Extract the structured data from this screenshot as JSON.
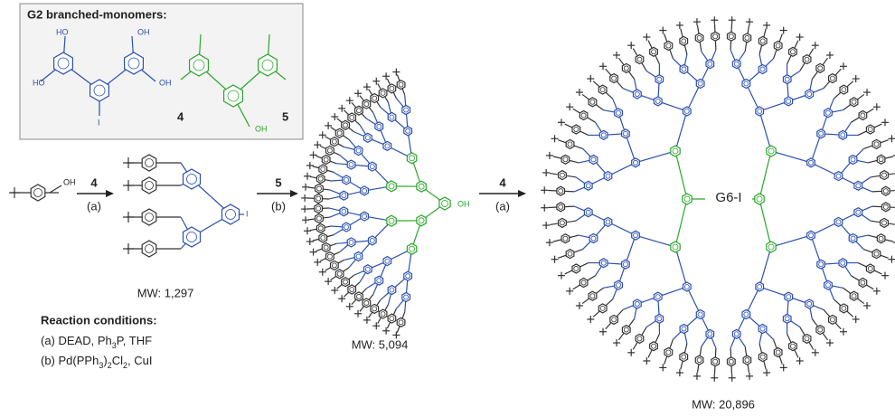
{
  "monomer_box": {
    "title": "G2 branched-monomers:",
    "compound_4": {
      "labels": [
        "HO",
        "OH",
        "HO",
        "OH",
        "I"
      ],
      "number": "4"
    },
    "compound_5": {
      "labels": [
        "OH"
      ],
      "number": "5"
    }
  },
  "starting_material": {
    "labels": [
      "OH"
    ]
  },
  "steps": [
    {
      "reagent": "4",
      "condition": "(a)"
    },
    {
      "reagent": "5",
      "condition": "(b)"
    },
    {
      "reagent": "4",
      "condition": "(a)"
    }
  ],
  "products": [
    {
      "labels": [
        "I"
      ],
      "mw": "MW: 1,297"
    },
    {
      "labels": [
        "OH"
      ],
      "mw": "MW: 5,094"
    },
    {
      "name": "G6-I",
      "mw": "MW: 20,896"
    }
  ],
  "reaction_conditions": {
    "title": "Reaction conditions:",
    "a": [
      "(a) DEAD, Ph",
      "3",
      "P, THF"
    ],
    "b": [
      "(b) Pd(PPh",
      "3",
      ")",
      "2",
      "Cl",
      "2",
      ", CuI"
    ]
  }
}
